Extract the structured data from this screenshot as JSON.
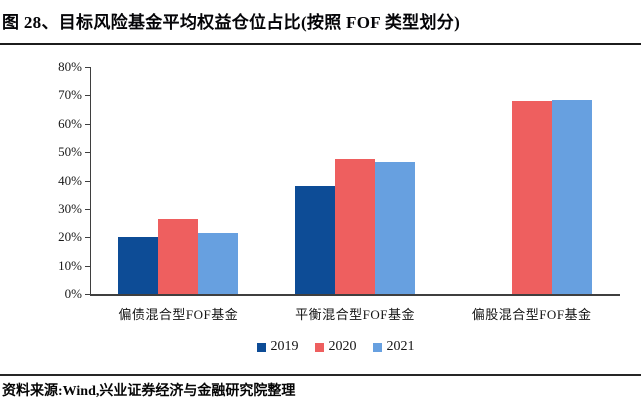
{
  "header": {
    "title": "图 28、目标风险基金平均权益仓位占比(按照 FOF 类型划分)"
  },
  "footer": {
    "source": "资料来源:Wind,兴业证券经济与金融研究院整理"
  },
  "chart_data": {
    "type": "bar",
    "title": "目标风险基金平均权益仓位占比(按照 FOF 类型划分)",
    "categories": [
      "偏债混合型FOF基金",
      "平衡混合型FOF基金",
      "偏股混合型FOF基金"
    ],
    "series": [
      {
        "name": "2019",
        "color": "#0d4c96",
        "values": [
          20,
          38,
          null
        ]
      },
      {
        "name": "2020",
        "color": "#ee5f5f",
        "values": [
          26.5,
          47.5,
          68
        ]
      },
      {
        "name": "2021",
        "color": "#67a0e0",
        "values": [
          21.5,
          46.5,
          68.5
        ]
      }
    ],
    "ylabel": "",
    "xlabel": "",
    "ylim": [
      0,
      80
    ],
    "yticks": [
      0,
      10,
      20,
      30,
      40,
      50,
      60,
      70,
      80
    ],
    "ytick_labels": [
      "0%",
      "10%",
      "20%",
      "30%",
      "40%",
      "50%",
      "60%",
      "70%",
      "80%"
    ],
    "grid": false,
    "legend_position": "bottom",
    "axis_color": "#3f3f3f"
  }
}
